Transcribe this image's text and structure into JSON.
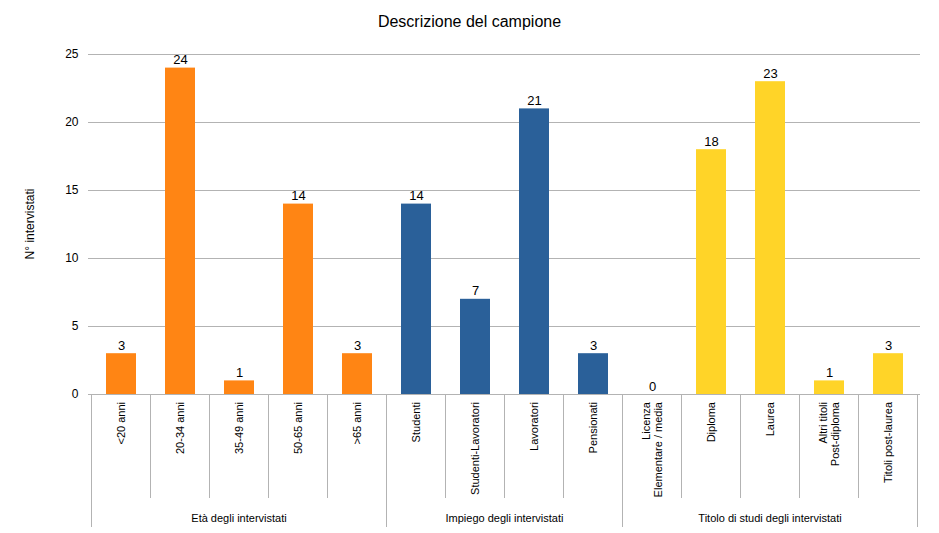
{
  "chart_data": {
    "type": "bar",
    "title": "Descrizione del campione",
    "y_label": "N° intervistati",
    "categories": [
      "<20 anni",
      "20-34 anni",
      "35-49 anni",
      "50-65 anni",
      ">65 anni",
      "Studenti",
      "Studenti-Lavoratori",
      "Lavoratori",
      "Pensionati",
      "Licenza\nElementare / media",
      "Diploma",
      "Laurea",
      "Altri titoli\nPost-diploma",
      "Titoli post-laurea"
    ],
    "series": [
      {
        "name": "Età degli intervistati",
        "color": "#ff8514",
        "values": [
          3,
          24,
          1,
          14,
          3,
          null,
          null,
          null,
          null,
          null,
          null,
          null,
          null,
          null
        ]
      },
      {
        "name": "Impiego degli intervistati",
        "color": "#2a6099",
        "values": [
          null,
          null,
          null,
          null,
          null,
          14,
          7,
          21,
          3,
          null,
          null,
          null,
          null,
          null
        ]
      },
      {
        "name": "Titolo di studi degli intervistati",
        "color": "#ffd428",
        "values": [
          null,
          null,
          null,
          null,
          null,
          null,
          null,
          null,
          null,
          0,
          18,
          23,
          1,
          3
        ]
      }
    ],
    "ylim": [
      0,
      25
    ],
    "yticks": [
      0,
      5,
      10,
      15,
      20,
      25
    ],
    "grid": true,
    "data_labels": true
  }
}
